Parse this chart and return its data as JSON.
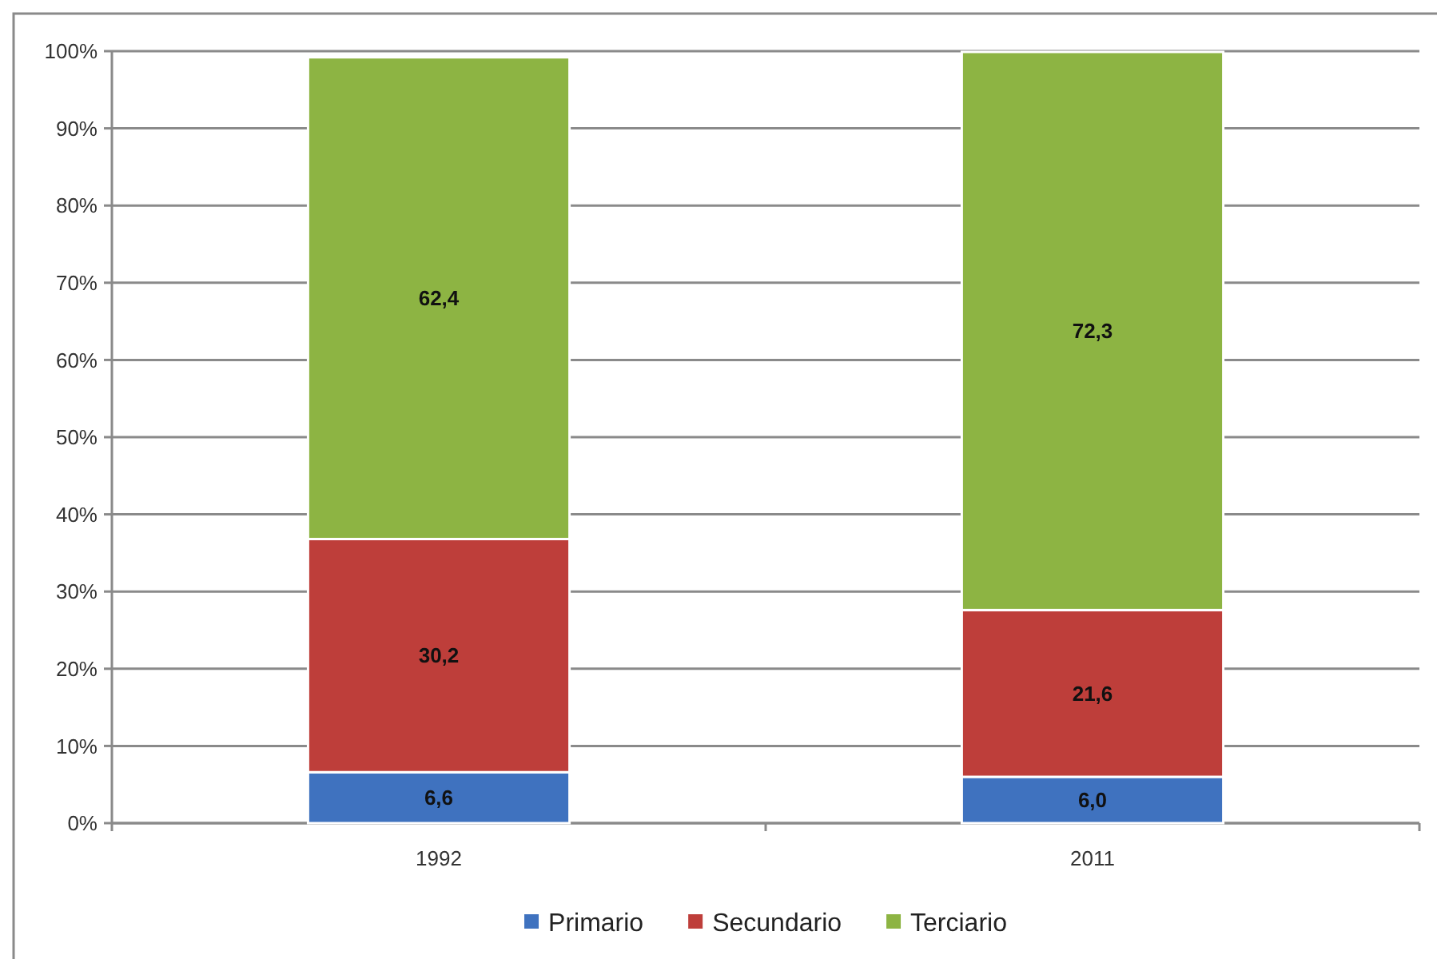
{
  "chart_data": {
    "type": "bar",
    "categories": [
      "1992",
      "2011"
    ],
    "stacked": true,
    "series": [
      {
        "name": "Primario",
        "color": "#3f72bf",
        "values": [
          6.6,
          6.0
        ],
        "value_labels": [
          "6,6",
          "6,0"
        ]
      },
      {
        "name": "Secundario",
        "color": "#be3e3a",
        "values": [
          30.2,
          21.6
        ],
        "value_labels": [
          "30,2",
          "21,6"
        ]
      },
      {
        "name": "Terciario",
        "color": "#8db443",
        "values": [
          62.4,
          72.3
        ],
        "value_labels": [
          "62,4",
          "72,3"
        ]
      }
    ],
    "ylim": [
      0,
      100
    ],
    "yticks": [
      {
        "value": 0,
        "label": "0%"
      },
      {
        "value": 10,
        "label": "10%"
      },
      {
        "value": 20,
        "label": "20%"
      },
      {
        "value": 30,
        "label": "30%"
      },
      {
        "value": 40,
        "label": "40%"
      },
      {
        "value": 50,
        "label": "50%"
      },
      {
        "value": 60,
        "label": "60%"
      },
      {
        "value": 70,
        "label": "70%"
      },
      {
        "value": 80,
        "label": "80%"
      },
      {
        "value": 90,
        "label": "90%"
      },
      {
        "value": 100,
        "label": "100%"
      }
    ],
    "grid": "y",
    "legend": "bottom"
  }
}
